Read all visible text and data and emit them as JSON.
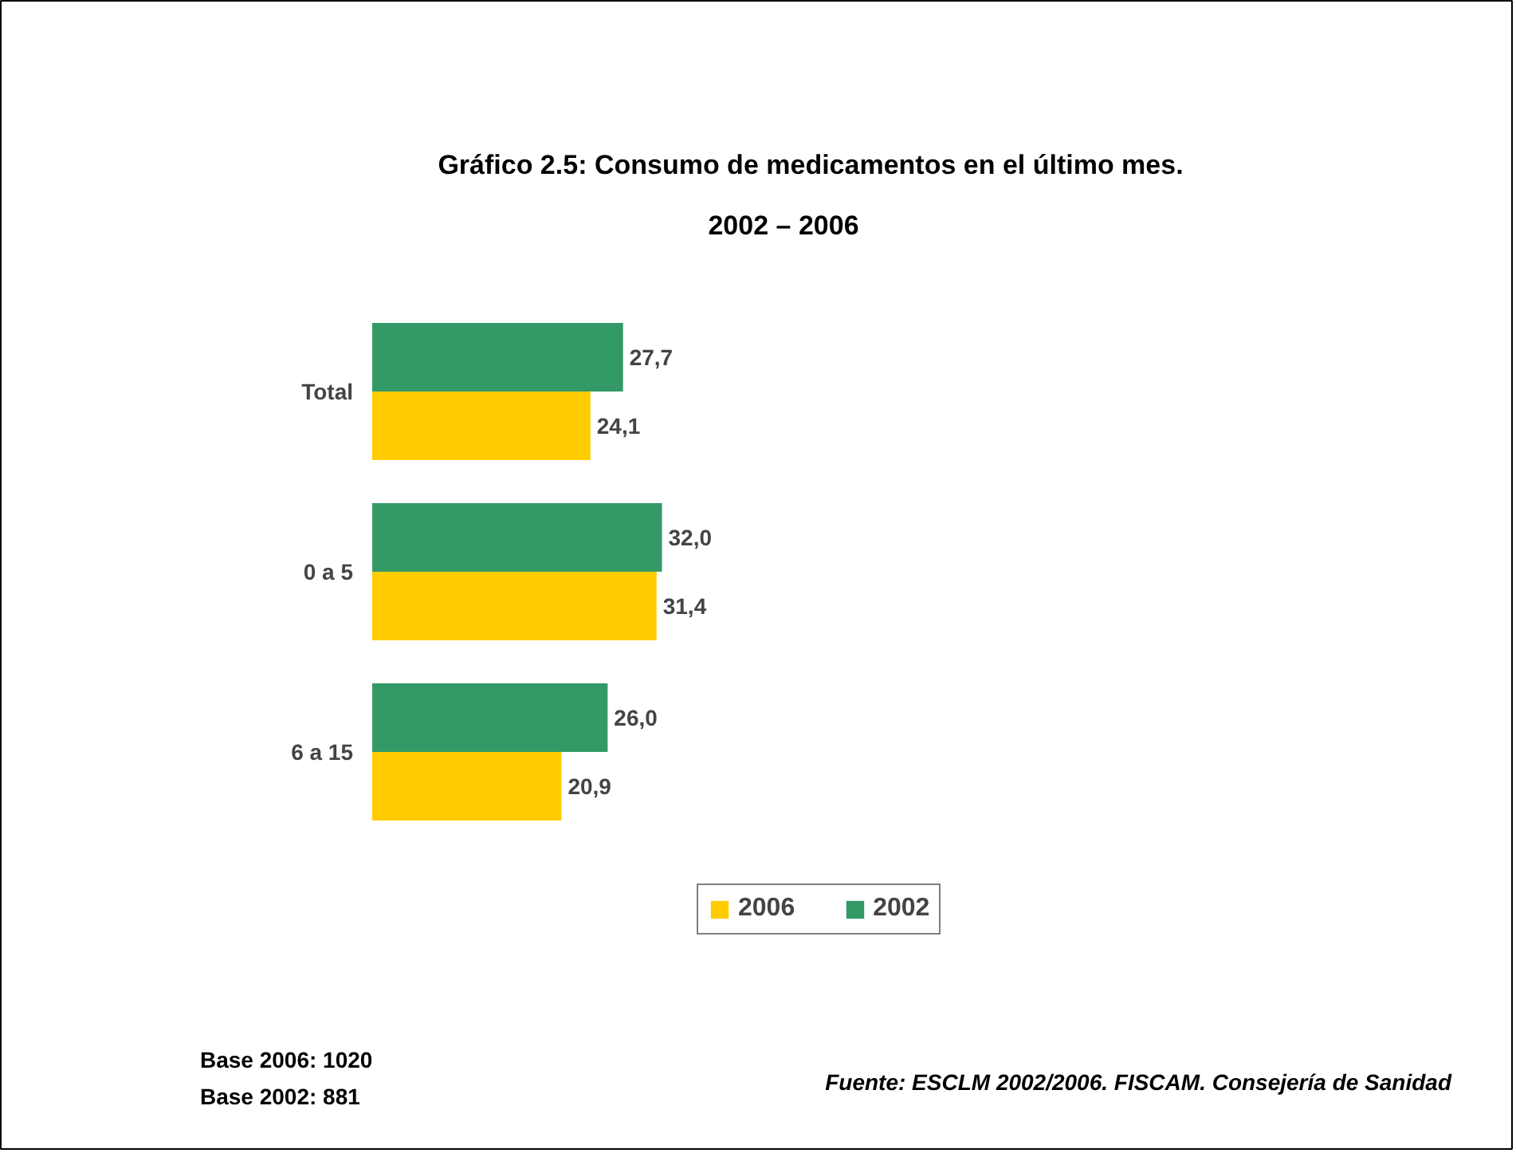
{
  "chart_data": {
    "type": "bar",
    "orientation": "horizontal",
    "title": "Gráfico 2.5: Consumo de medicamentos en el último mes.",
    "subtitle": "2002 – 2006",
    "categories": [
      "Total",
      "0 a 5",
      "6 a 15"
    ],
    "series": [
      {
        "name": "2006",
        "color": "#ffcc00",
        "values": [
          24.1,
          31.4,
          20.9
        ],
        "value_labels": [
          "24,1",
          "31,4",
          "20,9"
        ]
      },
      {
        "name": "2002",
        "color": "#339966",
        "values": [
          27.7,
          32.0,
          26.0
        ],
        "value_labels": [
          "27,7",
          "32,0",
          "26,0"
        ]
      }
    ],
    "legend": "bottom",
    "annotations": [
      "Base 2006: 1020",
      "Base 2002: 881",
      "Fuente: ESCLM 2002/2006. FISCAM. Consejería de Sanidad"
    ]
  }
}
